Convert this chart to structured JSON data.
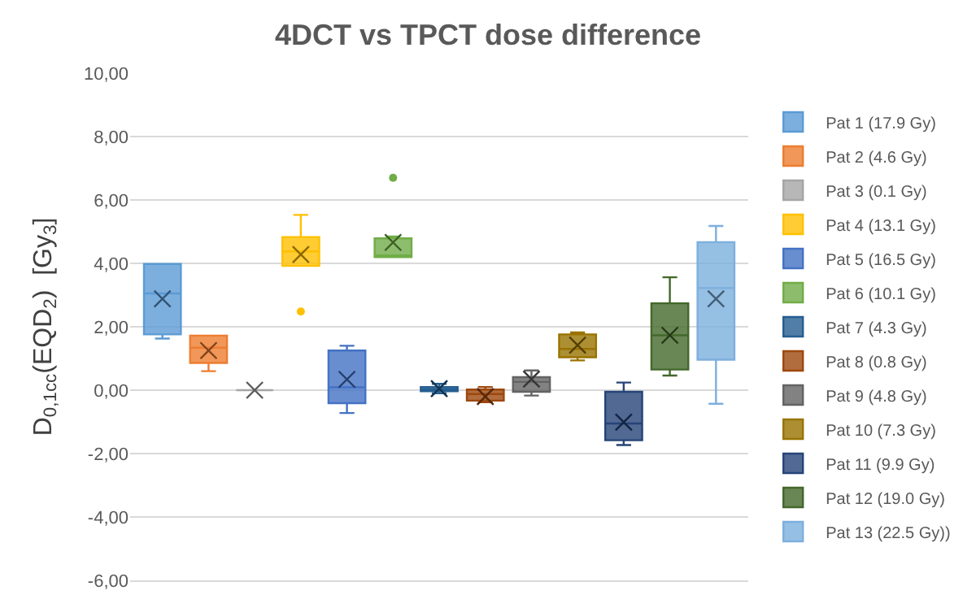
{
  "chart_data": {
    "type": "box",
    "title": "4DCT vs TPCT dose difference",
    "ylabel": "D$_{0,1cc}$(EQD$_{2}$)  [Gy$_{3}$]",
    "categories": [
      null
    ],
    "ylim": [
      -6,
      10
    ],
    "yticks": [
      {
        "value": -6,
        "label": "-6,00"
      },
      {
        "value": -4,
        "label": "-4,00"
      },
      {
        "value": -2,
        "label": "-2,00"
      },
      {
        "value": 0,
        "label": "0,00"
      },
      {
        "value": 2,
        "label": "2,00"
      },
      {
        "value": 4,
        "label": "4,00"
      },
      {
        "value": 6,
        "label": "6,00"
      },
      {
        "value": 8,
        "label": "8,00"
      },
      {
        "value": 10,
        "label": "10,00"
      }
    ],
    "grid": "y",
    "legend": "right",
    "marker": "cross",
    "series": [
      {
        "name": "Pat 1 (17.9 Gy)",
        "color": "#5b9bd5",
        "boxes": [
          {
            "low": 1.63,
            "q1": 1.76,
            "median": 3.05,
            "q3": 3.98,
            "high": 3.98,
            "mean": 2.88
          }
        ]
      },
      {
        "name": "Pat 2 (4.6 Gy)",
        "color": "#ed7d31",
        "boxes": [
          {
            "low": 0.6,
            "q1": 0.86,
            "median": 1.34,
            "q3": 1.72,
            "high": 1.72,
            "mean": 1.25
          }
        ]
      },
      {
        "name": "Pat 3 (0.1 Gy)",
        "color": "#a5a5a5",
        "boxes": [
          {
            "low": 0.0,
            "q1": 0.0,
            "median": 0.0,
            "q3": 0.0,
            "high": 0.0,
            "mean": 0.0
          }
        ]
      },
      {
        "name": "Pat 4 (13.1 Gy)",
        "color": "#ffc000",
        "boxes": [
          {
            "low": 3.92,
            "q1": 3.92,
            "median": 4.38,
            "q3": 4.83,
            "high": 5.53,
            "mean": 4.28,
            "outliers": [
              2.48
            ]
          }
        ]
      },
      {
        "name": "Pat 5 (16.5 Gy)",
        "color": "#4472c4",
        "boxes": [
          {
            "low": -0.72,
            "q1": -0.41,
            "median": 0.09,
            "q3": 1.25,
            "high": 1.4,
            "mean": 0.34
          }
        ]
      },
      {
        "name": "Pat 6 (10.1 Gy)",
        "color": "#70ad47",
        "boxes": [
          {
            "low": 4.2,
            "q1": 4.2,
            "median": 4.25,
            "q3": 4.79,
            "high": 4.85,
            "mean": 4.66,
            "outliers": [
              6.7
            ]
          }
        ]
      },
      {
        "name": "Pat 7 (4.3 Gy)",
        "color": "#255e91",
        "boxes": [
          {
            "low": -0.1,
            "q1": -0.03,
            "median": 0.03,
            "q3": 0.1,
            "high": 0.2,
            "mean": 0.05
          }
        ]
      },
      {
        "name": "Pat 8 (0.8 Gy)",
        "color": "#9e480e",
        "boxes": [
          {
            "low": -0.38,
            "q1": -0.33,
            "median": -0.12,
            "q3": 0.02,
            "high": 0.1,
            "mean": -0.2
          }
        ]
      },
      {
        "name": "Pat 9 (4.8 Gy)",
        "color": "#636363",
        "boxes": [
          {
            "low": -0.17,
            "q1": -0.05,
            "median": 0.26,
            "q3": 0.41,
            "high": 0.62,
            "mean": 0.35
          }
        ]
      },
      {
        "name": "Pat 10 (7.3 Gy)",
        "color": "#997300",
        "boxes": [
          {
            "low": 0.94,
            "q1": 1.04,
            "median": 1.3,
            "q3": 1.76,
            "high": 1.82,
            "mean": 1.42
          }
        ]
      },
      {
        "name": "Pat 11 (9.9 Gy)",
        "color": "#264478",
        "boxes": [
          {
            "low": -1.73,
            "q1": -1.58,
            "median": -1.05,
            "q3": -0.05,
            "high": 0.24,
            "mean": -1.01
          }
        ]
      },
      {
        "name": "Pat 12 (19.0 Gy)",
        "color": "#43682b",
        "boxes": [
          {
            "low": 0.46,
            "q1": 0.65,
            "median": 1.73,
            "q3": 2.74,
            "high": 3.56,
            "mean": 1.73
          }
        ]
      },
      {
        "name": "Pat 13 (22.5 Gy))",
        "color": "#7cafdd",
        "boxes": [
          {
            "low": -0.43,
            "q1": 0.96,
            "median": 3.22,
            "q3": 4.67,
            "high": 5.18,
            "mean": 2.88
          }
        ]
      }
    ]
  }
}
